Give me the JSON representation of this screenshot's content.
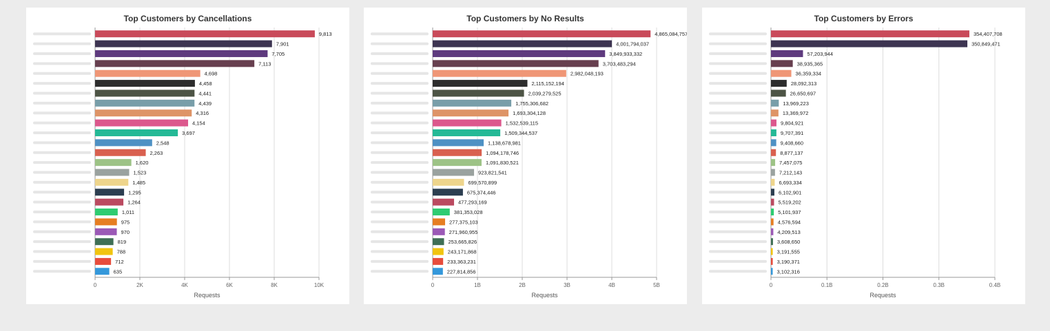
{
  "colors": [
    "#c94a5a",
    "#3d3451",
    "#5e3a7e",
    "#673f4f",
    "#ef9676",
    "#2d2d2d",
    "#4d5445",
    "#789ea9",
    "#de9467",
    "#dc588d",
    "#24b996",
    "#4e91c4",
    "#d9604f",
    "#9dc386",
    "#9aa29f",
    "#eed58c",
    "#2c3e50",
    "#bb4a60",
    "#2ecc71",
    "#e67e22",
    "#9b59b6",
    "#3f6f55",
    "#f1c40f",
    "#e74c3c",
    "#3498db"
  ],
  "chart_data": [
    {
      "type": "bar",
      "orientation": "horizontal",
      "title": "Top Customers by Cancellations",
      "xlabel": "Requests",
      "xlim": [
        0,
        10000
      ],
      "ticks": [
        0,
        2000,
        4000,
        6000,
        8000,
        10000
      ],
      "tick_labels": [
        "0",
        "2K",
        "4K",
        "6K",
        "8K",
        "10K"
      ],
      "grid": true,
      "categories_note": "category names are blurred in the original",
      "values": [
        9813,
        7901,
        7705,
        7113,
        4698,
        4458,
        4441,
        4439,
        4316,
        4154,
        3697,
        2548,
        2263,
        1620,
        1523,
        1485,
        1295,
        1264,
        1011,
        975,
        970,
        819,
        788,
        712,
        635
      ],
      "value_labels": [
        "9,813",
        "7,901",
        "7,705",
        "7,113",
        "4,698",
        "4,458",
        "4,441",
        "4,439",
        "4,316",
        "4,154",
        "3,697",
        "2,548",
        "2,263",
        "1,620",
        "1,523",
        "1,485",
        "1,295",
        "1,264",
        "1,011",
        "975",
        "970",
        "819",
        "788",
        "712",
        "635"
      ]
    },
    {
      "type": "bar",
      "orientation": "horizontal",
      "title": "Top Customers by No Results",
      "xlabel": "Requests",
      "xlim": [
        0,
        5000000000
      ],
      "ticks": [
        0,
        1000000000,
        2000000000,
        3000000000,
        4000000000,
        5000000000
      ],
      "tick_labels": [
        "0",
        "1B",
        "2B",
        "3B",
        "4B",
        "5B"
      ],
      "grid": true,
      "values": [
        4865084757,
        4001794037,
        3849933332,
        3703483294,
        2982048193,
        2115152194,
        2039279525,
        1755306682,
        1693304128,
        1532539115,
        1509344537,
        1138678981,
        1094178746,
        1091830521,
        923821541,
        699570899,
        675374446,
        477293169,
        381353028,
        277375103,
        271960955,
        253665826,
        243171868,
        233363231,
        227814856
      ],
      "value_labels": [
        "4,865,084,757",
        "4,001,794,037",
        "3,849,933,332",
        "3,703,483,294",
        "2,982,048,193",
        "2,115,152,194",
        "2,039,279,525",
        "1,755,306,682",
        "1,693,304,128",
        "1,532,539,115",
        "1,509,344,537",
        "1,138,678,981",
        "1,094,178,746",
        "1,091,830,521",
        "923,821,541",
        "699,570,899",
        "675,374,446",
        "477,293,169",
        "381,353,028",
        "277,375,103",
        "271,960,955",
        "253,665,826",
        "243,171,868",
        "233,363,231",
        "227,814,856"
      ]
    },
    {
      "type": "bar",
      "orientation": "horizontal",
      "title": "Top Customers by Errors",
      "xlabel": "Requests",
      "xlim": [
        0,
        400000000
      ],
      "ticks": [
        0,
        100000000,
        200000000,
        300000000,
        400000000
      ],
      "tick_labels": [
        "0",
        "0.1B",
        "0.2B",
        "0.3B",
        "0.4B"
      ],
      "grid": true,
      "values": [
        354407708,
        350849471,
        57203944,
        38935365,
        36359334,
        28092313,
        26650697,
        13969223,
        13369972,
        9804921,
        9707391,
        9408660,
        8877137,
        7457075,
        7212143,
        6693334,
        6102901,
        5519202,
        5101937,
        4576594,
        4209513,
        3608650,
        3191555,
        3190371,
        3102316
      ],
      "value_labels": [
        "354,407,708",
        "350,849,471",
        "57,203,944",
        "38,935,365",
        "36,359,334",
        "28,092,313",
        "26,650,697",
        "13,969,223",
        "13,369,972",
        "9,804,921",
        "9,707,391",
        "9,408,660",
        "8,877,137",
        "7,457,075",
        "7,212,143",
        "6,693,334",
        "6,102,901",
        "5,519,202",
        "5,101,937",
        "4,576,594",
        "4,209,513",
        "3,608,650",
        "3,191,555",
        "3,190,371",
        "3,102,316"
      ]
    }
  ]
}
